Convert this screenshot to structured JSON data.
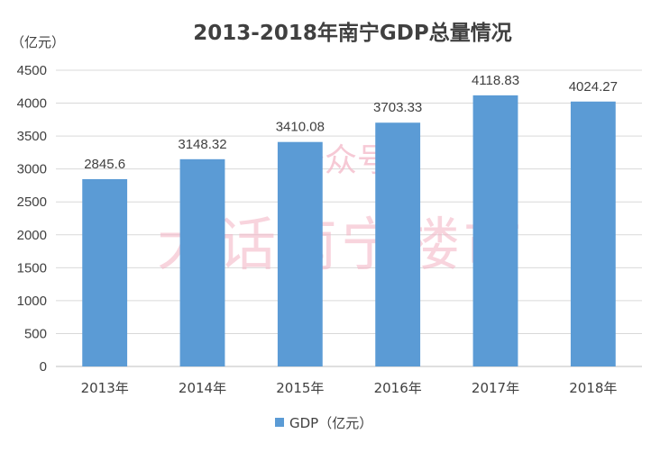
{
  "chart_data": {
    "type": "bar",
    "title": "2013-2018年南宁GDP总量情况",
    "ylabel": "（亿元）",
    "categories": [
      "2013年",
      "2014年",
      "2015年",
      "2016年",
      "2017年",
      "2018年"
    ],
    "series": [
      {
        "name": "GDP（亿元）",
        "values": [
          2845.6,
          3148.32,
          3410.08,
          3703.33,
          4118.83,
          4024.27
        ],
        "labels": [
          "2845.6",
          "3148.32",
          "3410.08",
          "3703.33",
          "4118.83",
          "4024.27"
        ],
        "color": "#5b9bd5"
      }
    ],
    "ylim": [
      0,
      4500
    ],
    "yticks": [
      0,
      500,
      1000,
      1500,
      2000,
      2500,
      3000,
      3500,
      4000,
      4500
    ],
    "grid": true,
    "legend": "bottom"
  },
  "watermark": {
    "line1": "公众号",
    "line2": "大话南宁楼市"
  }
}
